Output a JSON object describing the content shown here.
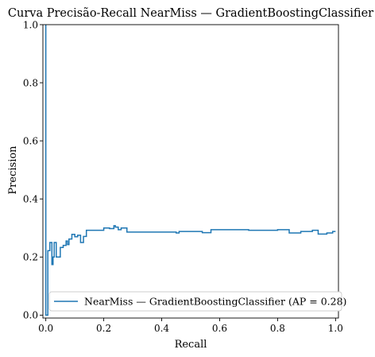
{
  "chart_data": {
    "type": "line",
    "title": "Curva Precisão-Recall NearMiss — GradientBoostingClassifier",
    "xlabel": "Recall",
    "ylabel": "Precision",
    "xlim": [
      -0.01,
      1.01
    ],
    "ylim": [
      -0.01,
      1.0
    ],
    "xticks": [
      0.0,
      0.2,
      0.4,
      0.6,
      0.8,
      1.0
    ],
    "xtick_labels": [
      "0.0",
      "0.2",
      "0.4",
      "0.6",
      "0.8",
      "1.0"
    ],
    "yticks": [
      0.0,
      0.2,
      0.4,
      0.6,
      0.8,
      1.0
    ],
    "ytick_labels": [
      "0.0",
      "0.2",
      "0.4",
      "0.6",
      "0.8",
      "1.0"
    ],
    "grid": false,
    "legend_position": "lower-right",
    "series": [
      {
        "name": "NearMiss — GradientBoostingClassifier (AP = 0.28)",
        "color": "#1f77b4",
        "drawstyle": "steps-post",
        "points": [
          [
            0.0,
            1.0
          ],
          [
            0.0,
            0.0
          ],
          [
            0.007,
            0.0
          ],
          [
            0.007,
            0.222
          ],
          [
            0.014,
            0.222
          ],
          [
            0.014,
            0.25
          ],
          [
            0.021,
            0.25
          ],
          [
            0.021,
            0.174
          ],
          [
            0.025,
            0.174
          ],
          [
            0.025,
            0.2
          ],
          [
            0.029,
            0.2
          ],
          [
            0.029,
            0.25
          ],
          [
            0.036,
            0.25
          ],
          [
            0.036,
            0.2
          ],
          [
            0.05,
            0.2
          ],
          [
            0.05,
            0.233
          ],
          [
            0.06,
            0.233
          ],
          [
            0.06,
            0.24
          ],
          [
            0.07,
            0.24
          ],
          [
            0.07,
            0.255
          ],
          [
            0.075,
            0.255
          ],
          [
            0.075,
            0.243
          ],
          [
            0.08,
            0.243
          ],
          [
            0.08,
            0.262
          ],
          [
            0.09,
            0.262
          ],
          [
            0.09,
            0.278
          ],
          [
            0.1,
            0.278
          ],
          [
            0.1,
            0.27
          ],
          [
            0.11,
            0.27
          ],
          [
            0.11,
            0.275
          ],
          [
            0.12,
            0.275
          ],
          [
            0.12,
            0.25
          ],
          [
            0.13,
            0.25
          ],
          [
            0.13,
            0.271
          ],
          [
            0.14,
            0.271
          ],
          [
            0.14,
            0.292
          ],
          [
            0.2,
            0.292
          ],
          [
            0.2,
            0.3
          ],
          [
            0.22,
            0.3
          ],
          [
            0.22,
            0.298
          ],
          [
            0.235,
            0.298
          ],
          [
            0.235,
            0.308
          ],
          [
            0.24,
            0.308
          ],
          [
            0.24,
            0.303
          ],
          [
            0.25,
            0.303
          ],
          [
            0.25,
            0.294
          ],
          [
            0.26,
            0.294
          ],
          [
            0.26,
            0.3
          ],
          [
            0.28,
            0.3
          ],
          [
            0.28,
            0.286
          ],
          [
            0.45,
            0.286
          ],
          [
            0.45,
            0.283
          ],
          [
            0.46,
            0.283
          ],
          [
            0.46,
            0.288
          ],
          [
            0.54,
            0.288
          ],
          [
            0.54,
            0.284
          ],
          [
            0.57,
            0.284
          ],
          [
            0.57,
            0.294
          ],
          [
            0.7,
            0.294
          ],
          [
            0.7,
            0.292
          ],
          [
            0.8,
            0.292
          ],
          [
            0.8,
            0.294
          ],
          [
            0.84,
            0.294
          ],
          [
            0.84,
            0.283
          ],
          [
            0.88,
            0.283
          ],
          [
            0.88,
            0.288
          ],
          [
            0.92,
            0.288
          ],
          [
            0.92,
            0.292
          ],
          [
            0.94,
            0.292
          ],
          [
            0.94,
            0.279
          ],
          [
            0.97,
            0.279
          ],
          [
            0.97,
            0.283
          ],
          [
            0.99,
            0.283
          ],
          [
            0.99,
            0.288
          ],
          [
            1.0,
            0.288
          ]
        ]
      }
    ]
  }
}
